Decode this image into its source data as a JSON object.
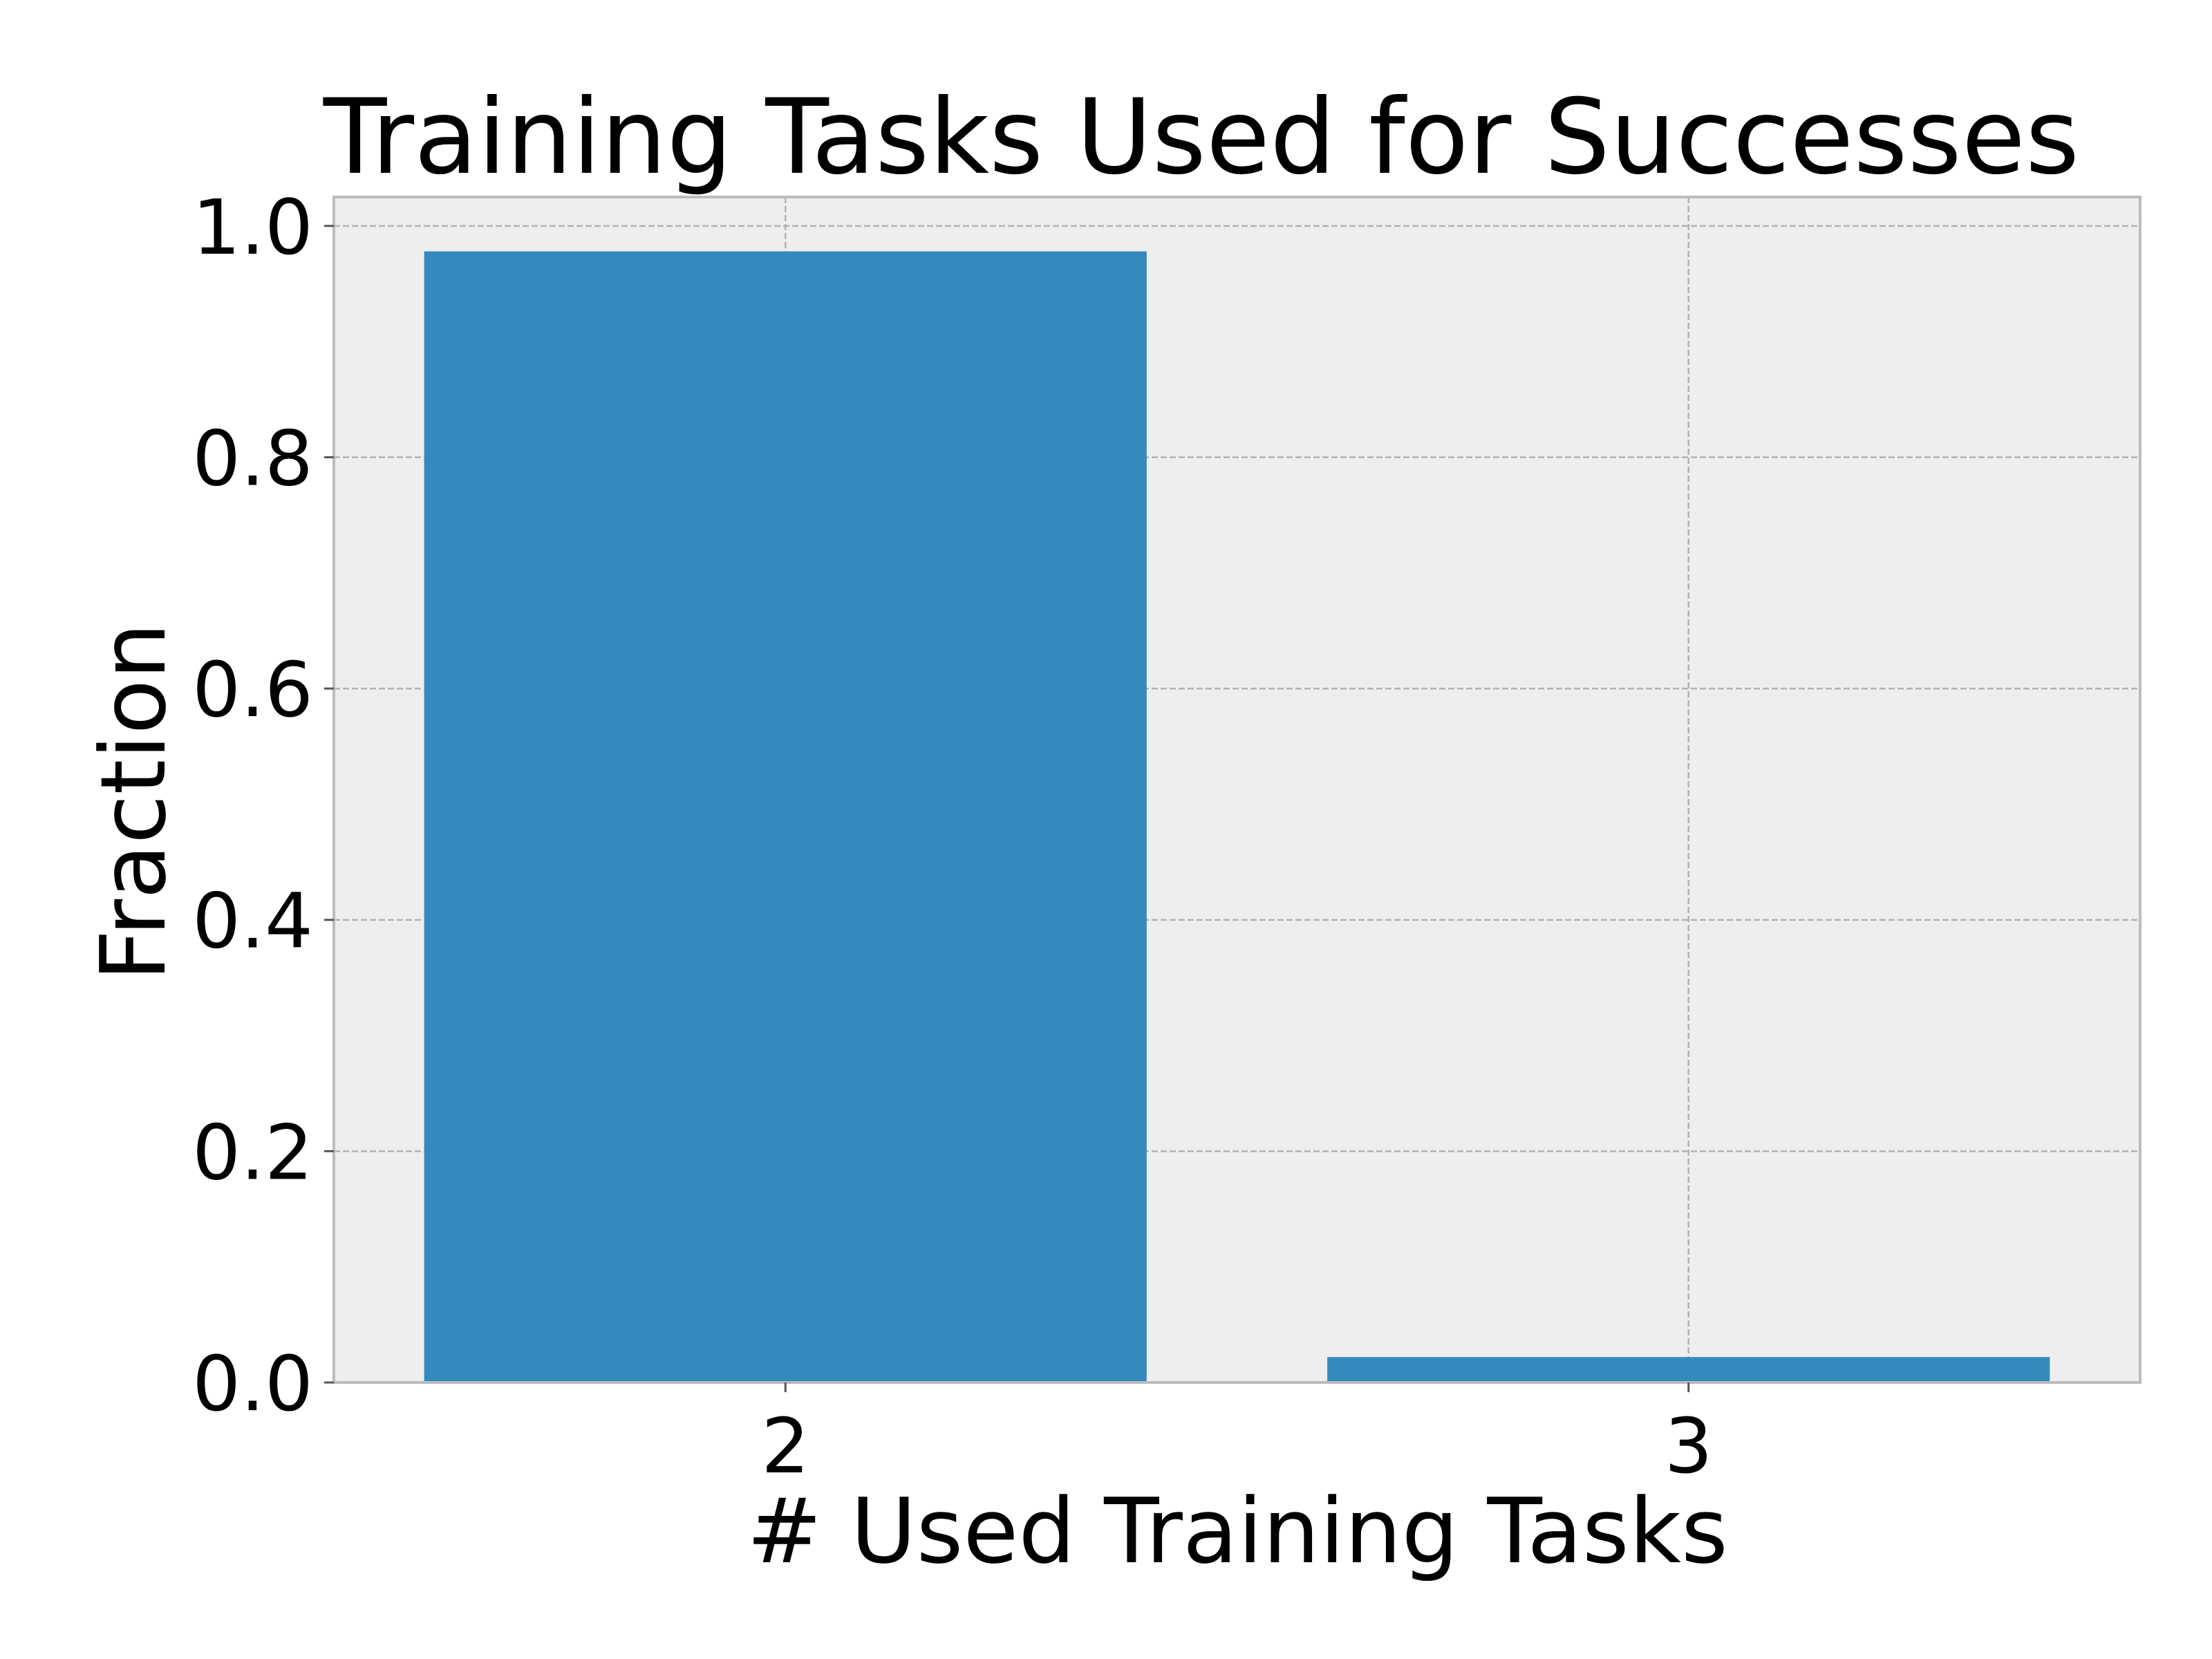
{
  "chart_data": {
    "type": "bar",
    "title": "Training Tasks Used for Successes",
    "xlabel": "# Used Training Tasks",
    "ylabel": "Fraction",
    "categories": [
      "2",
      "3"
    ],
    "values": [
      0.978,
      0.022
    ],
    "ylim": [
      0,
      1.025
    ],
    "yticks": [
      0.0,
      0.2,
      0.4,
      0.6,
      0.8,
      1.0
    ],
    "ytick_labels": [
      "0.0",
      "0.2",
      "0.4",
      "0.6",
      "0.8",
      "1.0"
    ],
    "grid": true,
    "colors": {
      "bar": "#348abd",
      "plot_background": "#eeeeee",
      "grid": "#b2b2b2",
      "axes_edge": "#bcbcbc",
      "text": "#000000"
    }
  }
}
